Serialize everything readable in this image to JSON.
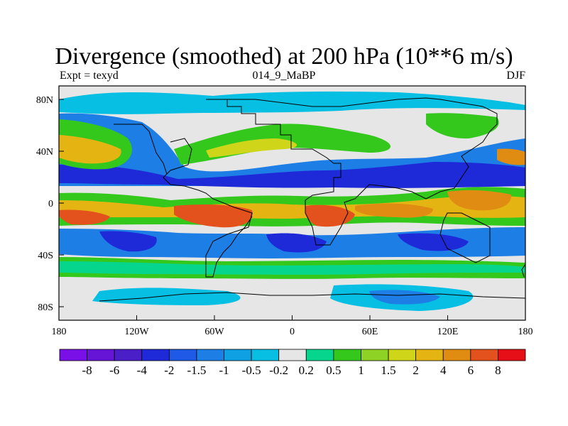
{
  "title": "Divergence (smoothed) at 200 hPa (10**6 m/s)",
  "left_label": "Expt = texyd",
  "center_label": "014_9_MaBP",
  "right_label": "DJF",
  "y_ticks": [
    "80N",
    "40N",
    "0",
    "40S",
    "80S"
  ],
  "x_ticks": [
    "180",
    "120W",
    "60W",
    "0",
    "60E",
    "120E",
    "180"
  ],
  "colorbar": {
    "labels": [
      "-8",
      "-6",
      "-4",
      "-2",
      "-1.5",
      "-1",
      "-0.5",
      "-0.2",
      "0.2",
      "0.5",
      "1",
      "1.5",
      "2",
      "4",
      "6",
      "8"
    ],
    "colors": [
      "#7a10e8",
      "#6615d6",
      "#4a1fc8",
      "#1e2ad8",
      "#1f5ae6",
      "#1d7fe6",
      "#0f9fe3",
      "#06bfe3",
      "#e6e6e6",
      "#06d68d",
      "#34c81d",
      "#8fd226",
      "#cfd61a",
      "#e4b413",
      "#e08c12",
      "#e3521c",
      "#e60f17"
    ]
  },
  "chart_data": {
    "type": "heatmap",
    "title": "Divergence (smoothed) at 200 hPa (10**6 m/s)",
    "subtitle": "014_9_MaBP",
    "xlim": [
      -180,
      180
    ],
    "ylim": [
      -90,
      90
    ],
    "contour_levels": [
      -8,
      -6,
      -4,
      -2,
      -1.5,
      -1,
      -0.5,
      -0.2,
      0.2,
      0.5,
      1,
      1.5,
      2,
      4,
      6,
      8
    ]
  }
}
